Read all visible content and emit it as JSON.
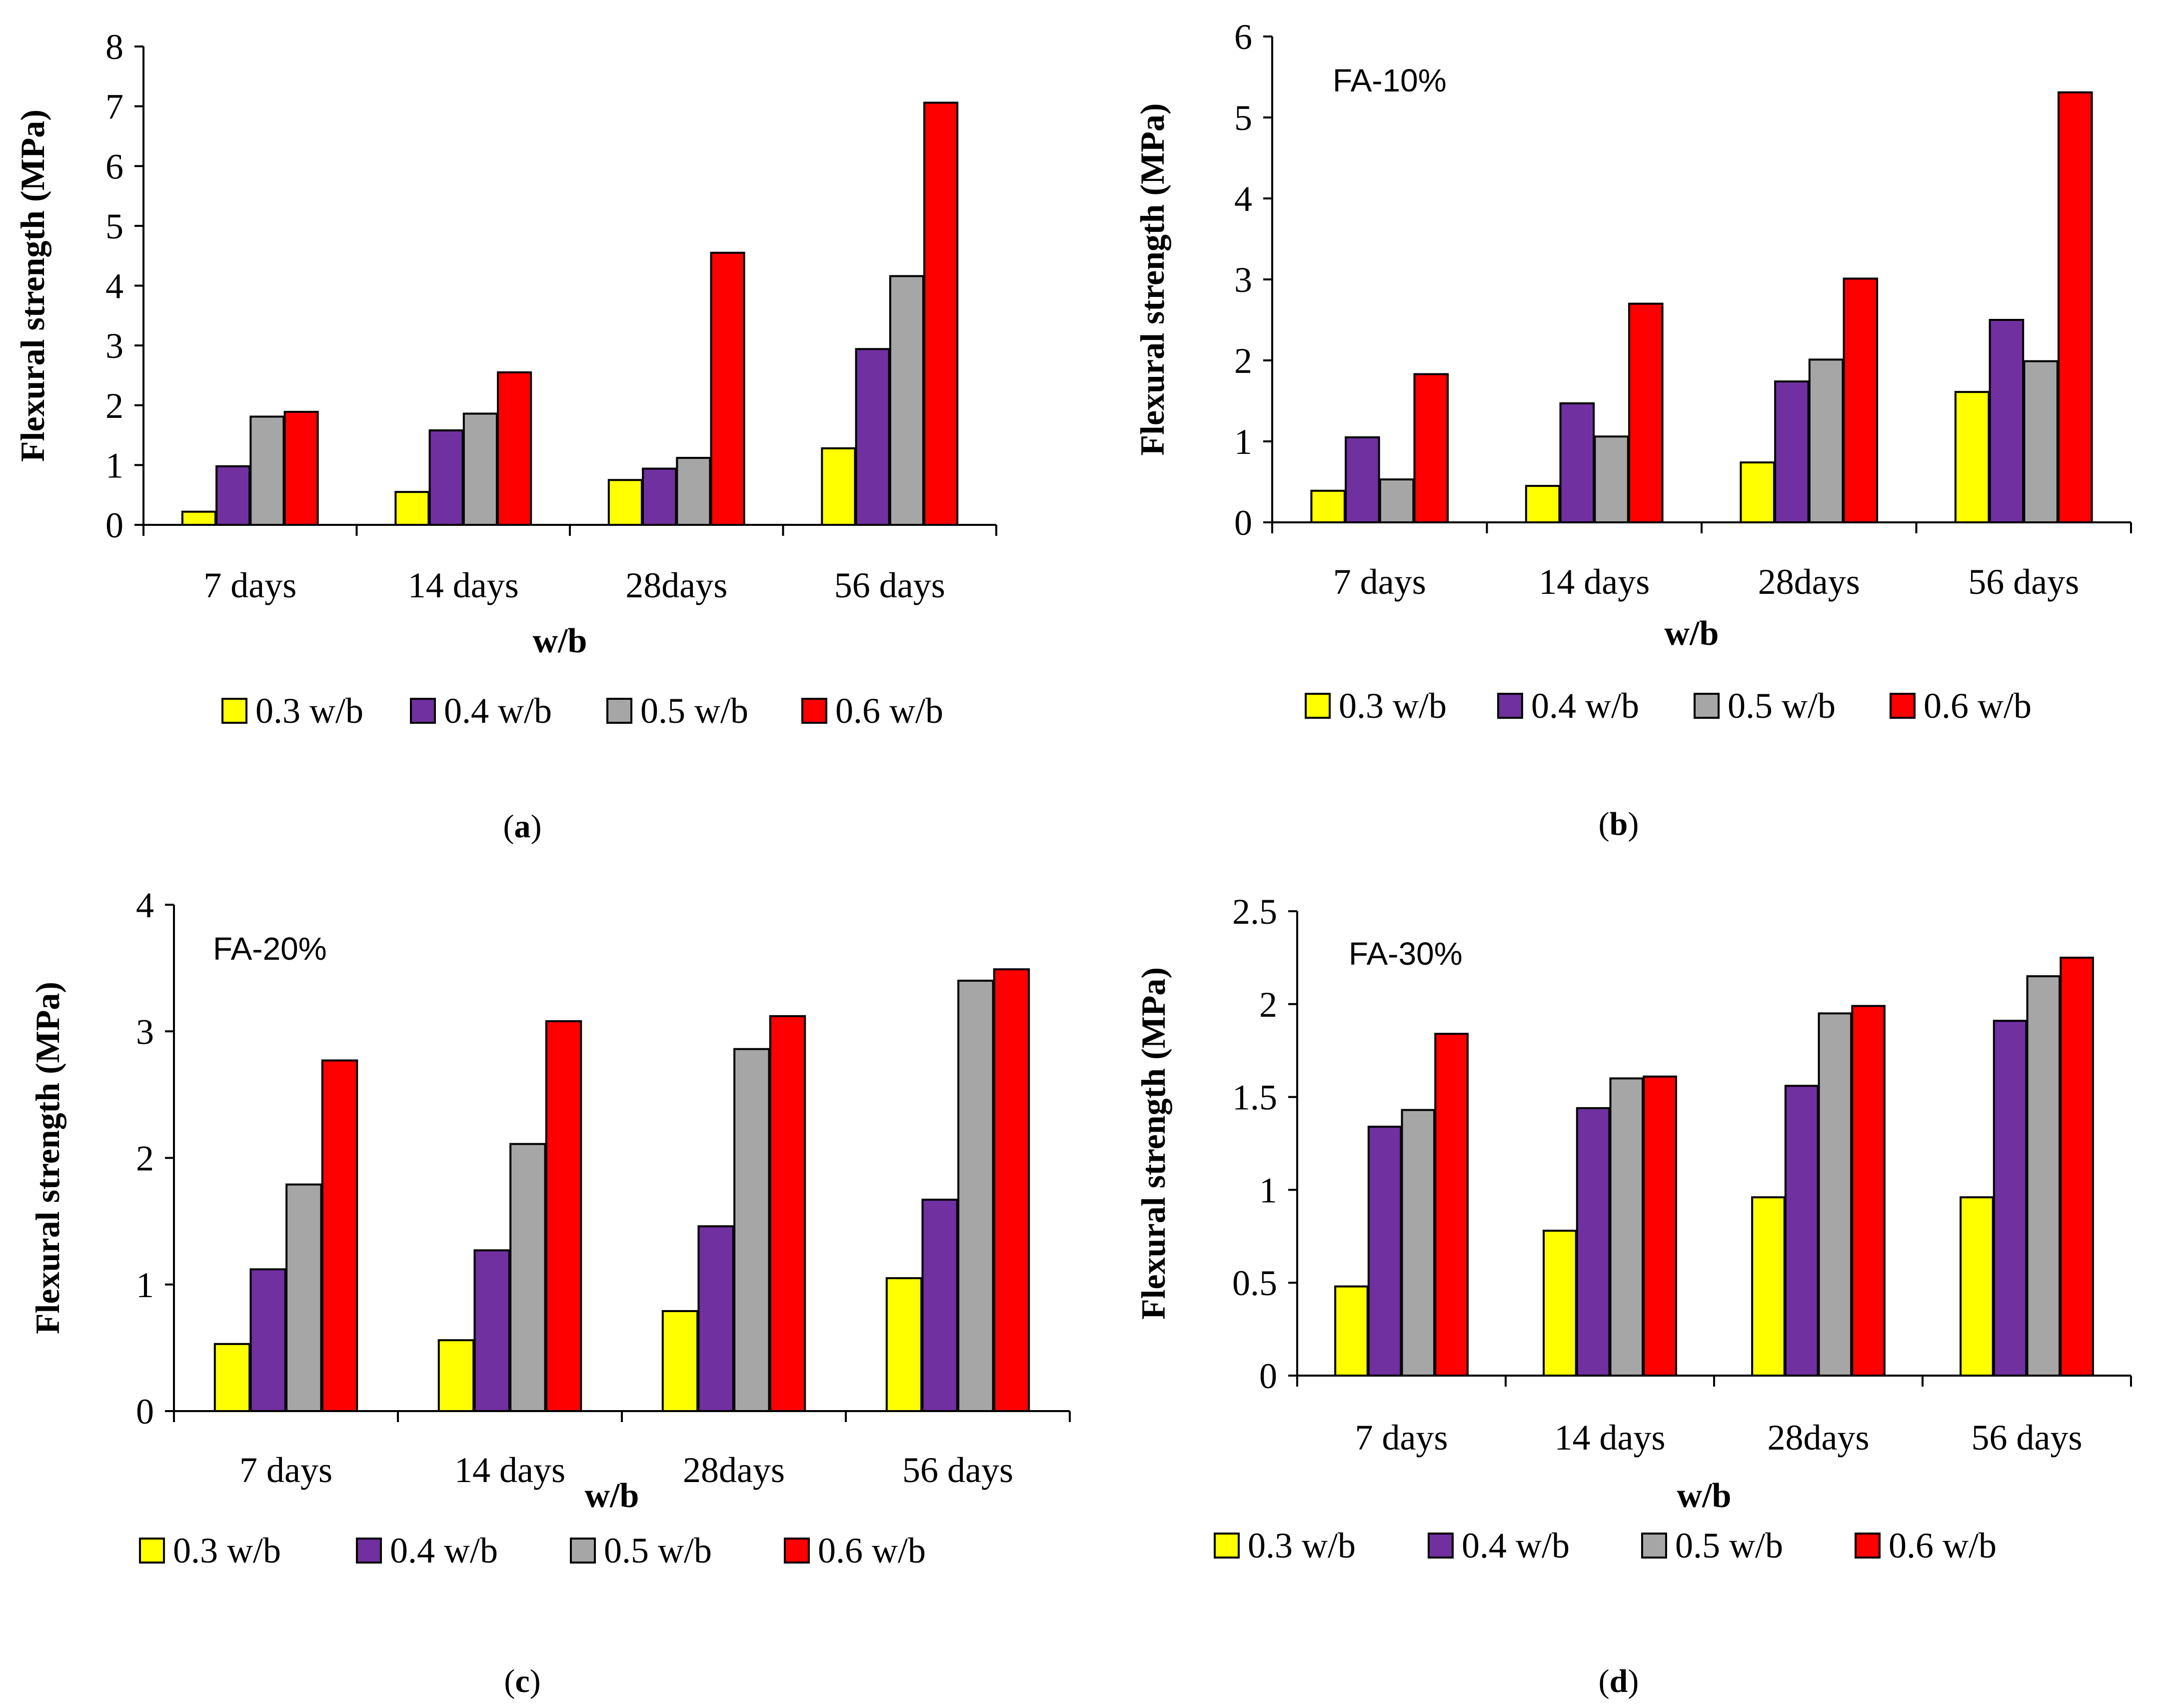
{
  "colors": {
    "0.3 w/b": "#ffff00",
    "0.4 w/b": "#7030a0",
    "0.5 w/b": "#a6a6a6",
    "0.6 w/b": "#ff0000"
  },
  "chart_data": [
    {
      "type": "bar",
      "panel": "a",
      "caption": "(a)",
      "caption_letter": "a",
      "annotation": "",
      "categories": [
        "7 days",
        "14 days",
        "28days",
        "56 days"
      ],
      "series": [
        {
          "name": "0.3 w/b",
          "values": [
            0.22,
            0.55,
            0.75,
            1.28
          ]
        },
        {
          "name": "0.4 w/b",
          "values": [
            0.98,
            1.58,
            0.94,
            2.94
          ]
        },
        {
          "name": "0.5 w/b",
          "values": [
            1.81,
            1.86,
            1.12,
            4.16
          ]
        },
        {
          "name": "0.6 w/b",
          "values": [
            1.89,
            2.55,
            4.55,
            7.06
          ]
        }
      ],
      "ylim": [
        0,
        8
      ],
      "yticks": [
        "0",
        "1",
        "2",
        "3",
        "4",
        "5",
        "6",
        "7",
        "8"
      ],
      "xlabel": "w/b",
      "ylabel": "Flexural strength (MPa)",
      "legend": [
        "0.3 w/b",
        "0.4 w/b",
        "0.5 w/b",
        "0.6 w/b"
      ]
    },
    {
      "type": "bar",
      "panel": "b",
      "caption": "(b)",
      "caption_letter": "b",
      "annotation": "FA-10%",
      "categories": [
        "7 days",
        "14 days",
        "28days",
        "56 days"
      ],
      "series": [
        {
          "name": "0.3 w/b",
          "values": [
            0.39,
            0.45,
            0.74,
            1.61
          ]
        },
        {
          "name": "0.4 w/b",
          "values": [
            1.05,
            1.47,
            1.74,
            2.5
          ]
        },
        {
          "name": "0.5 w/b",
          "values": [
            0.53,
            1.06,
            2.01,
            1.99
          ]
        },
        {
          "name": "0.6 w/b",
          "values": [
            1.83,
            2.7,
            3.01,
            5.31
          ]
        }
      ],
      "ylim": [
        0,
        6
      ],
      "yticks": [
        "0",
        "1",
        "2",
        "3",
        "4",
        "5",
        "6"
      ],
      "xlabel": "w/b",
      "ylabel": "Flexural strength (MPa)",
      "legend": [
        "0.3 w/b",
        "0.4 w/b",
        "0.5 w/b",
        "0.6 w/b"
      ]
    },
    {
      "type": "bar",
      "panel": "c",
      "caption": "(c)",
      "caption_letter": "c",
      "annotation": "FA-20%",
      "categories": [
        "7 days",
        "14 days",
        "28days",
        "56 days"
      ],
      "series": [
        {
          "name": "0.3 w/b",
          "values": [
            0.53,
            0.56,
            0.79,
            1.05
          ]
        },
        {
          "name": "0.4 w/b",
          "values": [
            1.12,
            1.27,
            1.46,
            1.67
          ]
        },
        {
          "name": "0.5 w/b",
          "values": [
            1.79,
            2.11,
            2.86,
            3.4
          ]
        },
        {
          "name": "0.6 w/b",
          "values": [
            2.77,
            3.08,
            3.12,
            3.49
          ]
        }
      ],
      "ylim": [
        0,
        4
      ],
      "yticks": [
        "0",
        "1",
        "2",
        "3",
        "4"
      ],
      "xlabel": "w/b",
      "ylabel": "Flexural strength (MPa)",
      "legend": [
        "0.3 w/b",
        "0.4 w/b",
        "0.5 w/b",
        "0.6 w/b"
      ]
    },
    {
      "type": "bar",
      "panel": "d",
      "caption": "(d)",
      "caption_letter": "d",
      "annotation": "FA-30%",
      "categories": [
        "7 days",
        "14 days",
        "28days",
        "56 days"
      ],
      "series": [
        {
          "name": "0.3 w/b",
          "values": [
            0.48,
            0.78,
            0.96,
            0.96
          ]
        },
        {
          "name": "0.4 w/b",
          "values": [
            1.34,
            1.44,
            1.56,
            1.91
          ]
        },
        {
          "name": "0.5 w/b",
          "values": [
            1.43,
            1.6,
            1.95,
            2.15
          ]
        },
        {
          "name": "0.6 w/b",
          "values": [
            1.84,
            1.61,
            1.99,
            2.25
          ]
        }
      ],
      "ylim": [
        0,
        2.5
      ],
      "yticks": [
        "0",
        "0.5",
        "1",
        "1.5",
        "2",
        "2.5"
      ],
      "xlabel": "w/b",
      "ylabel": "Flexural strength (MPa)",
      "legend": [
        "0.3 w/b",
        "0.4 w/b",
        "0.5 w/b",
        "0.6 w/b"
      ]
    }
  ]
}
